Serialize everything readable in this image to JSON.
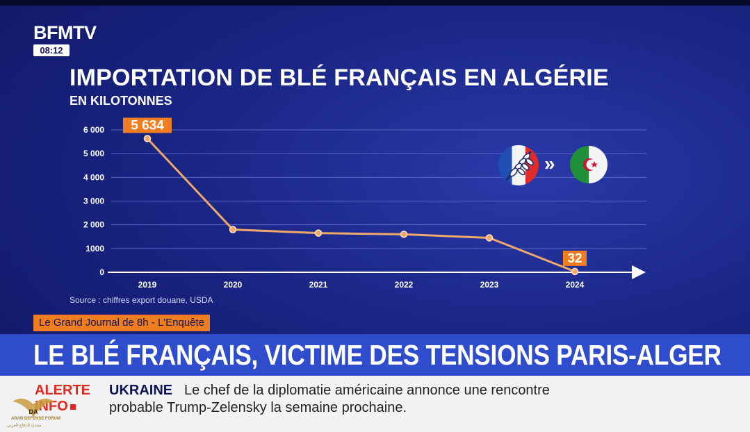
{
  "channel": {
    "logo": "BFMTV",
    "clock": "08:12"
  },
  "chart_data": {
    "type": "line",
    "title": "IMPORTATION DE BLÉ FRANÇAIS EN ALGÉRIE",
    "subtitle": "EN KILOTONNES",
    "x": [
      "2019",
      "2020",
      "2021",
      "2022",
      "2023",
      "2024"
    ],
    "series": [
      {
        "values": [
          5634,
          1800,
          1650,
          1600,
          1450,
          32
        ]
      }
    ],
    "data_labels": [
      {
        "index": 0,
        "text": "5 634"
      },
      {
        "index": 5,
        "text": "32"
      }
    ],
    "ylim": [
      0,
      6000
    ],
    "yticks": [
      0,
      1000,
      2000,
      3000,
      4000,
      5000,
      6000
    ],
    "ytick_labels": [
      "0",
      "1000",
      "2 000",
      "3 000",
      "4 000",
      "5 000",
      "6 000"
    ],
    "grid": true,
    "source": "Source : chiffres export douane, USDA",
    "colors": {
      "line": "#f0a96a",
      "label_bg": "#f07d1f",
      "grid": "#5a67c8"
    }
  },
  "decor": {
    "arrows": "»",
    "from_icon": "france-wheat-flag-icon",
    "to_icon": "algeria-flag-icon"
  },
  "program": "Le Grand Journal de 8h - L'Enquête",
  "headline": "LE BLÉ FRANÇAIS, VICTIME DES TENSIONS PARIS-ALGER",
  "ticker": {
    "alert_line1": "ALERTE",
    "alert_line2": "INFO",
    "keyword": "UKRAINE",
    "text_line1": "Le chef de la diplomatie américaine annonce une rencontre",
    "text_line2": "probable Trump-Zelensky la semaine prochaine."
  },
  "watermark": {
    "line1": "ARAB DEFENSE FORUM",
    "line2": "منتدى الدفاع العربي",
    "initials": "DA"
  }
}
